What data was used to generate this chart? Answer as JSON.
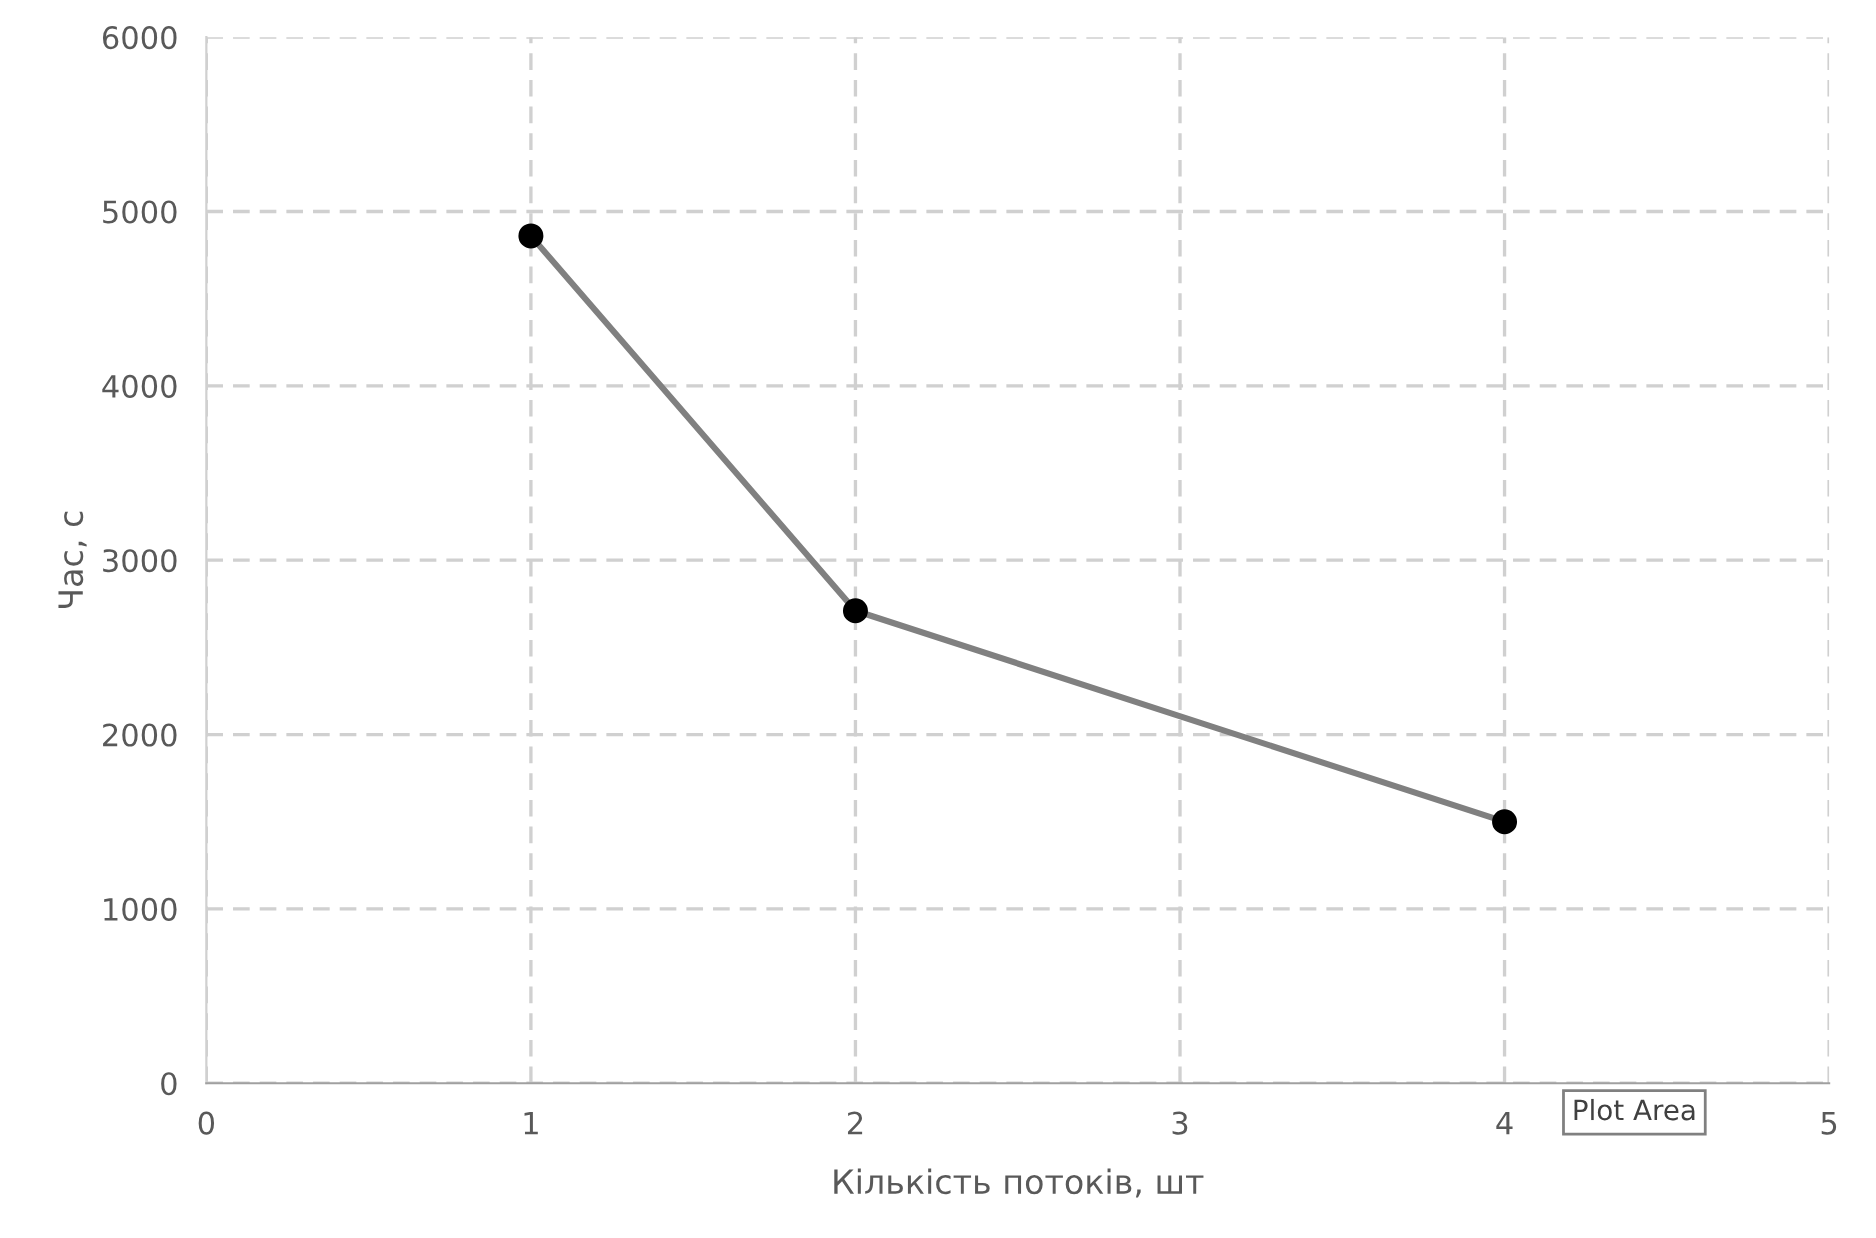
{
  "chart_data": {
    "type": "line",
    "xlabel": "Кількість потоків, шт",
    "ylabel": "Час, с",
    "x": [
      1,
      2,
      4
    ],
    "series": [
      {
        "color": "#808080",
        "values": [
          4860,
          2710,
          1500
        ]
      }
    ],
    "xlim": [
      0,
      5
    ],
    "xticks": [
      0,
      1,
      2,
      3,
      4,
      5
    ],
    "ylim": [
      0,
      6000
    ],
    "yticks": [
      0,
      1000,
      2000,
      3000,
      4000,
      5000,
      6000
    ],
    "grid": true,
    "marker": "circle",
    "line_style": "solid",
    "annotations": [
      "Plot Area"
    ]
  }
}
